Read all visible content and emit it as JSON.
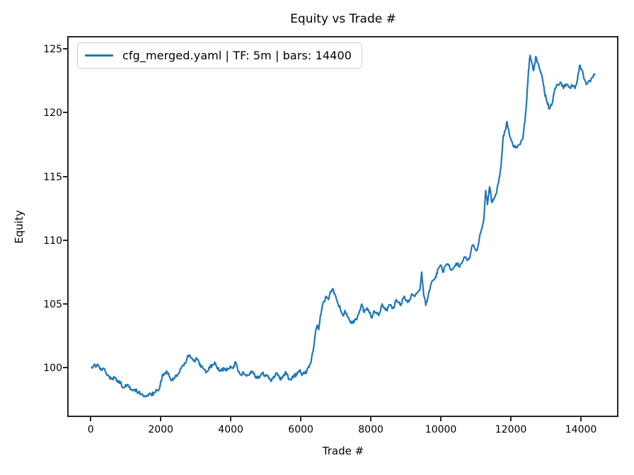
{
  "chart_data": {
    "type": "line",
    "title": "Equity vs Trade #",
    "xlabel": "Trade #",
    "ylabel": "Equity",
    "legend": [
      "cfg_merged.yaml | TF: 5m | bars: 14400"
    ],
    "legend_position": "upper left",
    "line_color": "#1f77b4",
    "grid": false,
    "xlim": [
      -650,
      15050
    ],
    "ylim": [
      96.2,
      125.9
    ],
    "x_ticks": [
      0,
      2000,
      4000,
      6000,
      8000,
      10000,
      12000,
      14000
    ],
    "y_ticks": [
      100,
      105,
      110,
      115,
      120,
      125
    ],
    "noise_amplitude": 0.15,
    "series": [
      {
        "name": "cfg_merged.yaml | TF: 5m | bars: 14400",
        "points": [
          [
            30,
            100.05
          ],
          [
            70,
            100.1
          ],
          [
            110,
            100.3
          ],
          [
            160,
            100.1
          ],
          [
            210,
            100.2
          ],
          [
            260,
            99.9
          ],
          [
            320,
            99.8
          ],
          [
            380,
            99.95
          ],
          [
            440,
            99.6
          ],
          [
            510,
            99.4
          ],
          [
            600,
            99.15
          ],
          [
            680,
            99.25
          ],
          [
            760,
            99.0
          ],
          [
            850,
            98.8
          ],
          [
            940,
            98.45
          ],
          [
            1030,
            98.6
          ],
          [
            1100,
            98.5
          ],
          [
            1170,
            98.3
          ],
          [
            1260,
            98.3
          ],
          [
            1360,
            98.1
          ],
          [
            1450,
            97.95
          ],
          [
            1540,
            97.8
          ],
          [
            1610,
            97.85
          ],
          [
            1670,
            98.0
          ],
          [
            1730,
            97.85
          ],
          [
            1800,
            98.05
          ],
          [
            1870,
            98.3
          ],
          [
            1930,
            98.2
          ],
          [
            1990,
            98.75
          ],
          [
            2060,
            99.5
          ],
          [
            2120,
            99.6
          ],
          [
            2170,
            99.75
          ],
          [
            2240,
            99.35
          ],
          [
            2320,
            99.0
          ],
          [
            2400,
            99.2
          ],
          [
            2480,
            99.45
          ],
          [
            2560,
            99.9
          ],
          [
            2640,
            100.2
          ],
          [
            2700,
            100.35
          ],
          [
            2760,
            100.85
          ],
          [
            2830,
            101.0
          ],
          [
            2900,
            100.7
          ],
          [
            2960,
            100.5
          ],
          [
            3020,
            100.8
          ],
          [
            3090,
            100.45
          ],
          [
            3160,
            100.1
          ],
          [
            3230,
            99.9
          ],
          [
            3310,
            99.7
          ],
          [
            3400,
            100.0
          ],
          [
            3470,
            100.2
          ],
          [
            3540,
            100.45
          ],
          [
            3610,
            100.0
          ],
          [
            3680,
            99.75
          ],
          [
            3750,
            99.85
          ],
          [
            3830,
            99.95
          ],
          [
            3910,
            99.85
          ],
          [
            3990,
            100.15
          ],
          [
            4060,
            99.95
          ],
          [
            4140,
            100.45
          ],
          [
            4220,
            99.7
          ],
          [
            4290,
            99.45
          ],
          [
            4370,
            99.6
          ],
          [
            4450,
            99.35
          ],
          [
            4540,
            99.5
          ],
          [
            4630,
            99.7
          ],
          [
            4720,
            99.3
          ],
          [
            4810,
            99.2
          ],
          [
            4900,
            99.55
          ],
          [
            5000,
            99.45
          ],
          [
            5080,
            99.2
          ],
          [
            5160,
            98.95
          ],
          [
            5240,
            99.25
          ],
          [
            5320,
            99.6
          ],
          [
            5400,
            99.15
          ],
          [
            5490,
            99.35
          ],
          [
            5570,
            99.7
          ],
          [
            5650,
            99.1
          ],
          [
            5730,
            99.05
          ],
          [
            5810,
            99.4
          ],
          [
            5890,
            99.45
          ],
          [
            5960,
            99.8
          ],
          [
            6030,
            99.4
          ],
          [
            6100,
            99.55
          ],
          [
            6170,
            99.75
          ],
          [
            6240,
            100.05
          ],
          [
            6290,
            100.4
          ],
          [
            6350,
            101.3
          ],
          [
            6410,
            102.6
          ],
          [
            6460,
            103.3
          ],
          [
            6510,
            103.0
          ],
          [
            6560,
            104.1
          ],
          [
            6610,
            104.8
          ],
          [
            6670,
            105.2
          ],
          [
            6730,
            105.6
          ],
          [
            6790,
            105.35
          ],
          [
            6860,
            106.0
          ],
          [
            6910,
            106.2
          ],
          [
            6970,
            105.8
          ],
          [
            7050,
            105.1
          ],
          [
            7130,
            104.6
          ],
          [
            7200,
            104.1
          ],
          [
            7260,
            104.5
          ],
          [
            7330,
            104.0
          ],
          [
            7400,
            103.7
          ],
          [
            7470,
            103.5
          ],
          [
            7540,
            103.75
          ],
          [
            7610,
            103.9
          ],
          [
            7680,
            104.5
          ],
          [
            7740,
            105.0
          ],
          [
            7810,
            104.35
          ],
          [
            7890,
            104.7
          ],
          [
            7960,
            104.3
          ],
          [
            8030,
            103.9
          ],
          [
            8100,
            104.45
          ],
          [
            8170,
            104.25
          ],
          [
            8240,
            104.2
          ],
          [
            8310,
            104.9
          ],
          [
            8380,
            104.75
          ],
          [
            8450,
            104.5
          ],
          [
            8520,
            104.95
          ],
          [
            8590,
            104.8
          ],
          [
            8660,
            104.7
          ],
          [
            8730,
            105.35
          ],
          [
            8800,
            105.1
          ],
          [
            8870,
            105.0
          ],
          [
            8940,
            105.55
          ],
          [
            9010,
            105.3
          ],
          [
            9090,
            105.2
          ],
          [
            9170,
            105.8
          ],
          [
            9250,
            105.6
          ],
          [
            9330,
            105.9
          ],
          [
            9400,
            106.1
          ],
          [
            9450,
            107.5
          ],
          [
            9510,
            105.7
          ],
          [
            9570,
            104.9
          ],
          [
            9640,
            105.7
          ],
          [
            9710,
            106.5
          ],
          [
            9790,
            106.9
          ],
          [
            9860,
            107.1
          ],
          [
            9930,
            107.8
          ],
          [
            9990,
            108.05
          ],
          [
            10060,
            107.5
          ],
          [
            10130,
            108.0
          ],
          [
            10190,
            108.15
          ],
          [
            10260,
            107.8
          ],
          [
            10330,
            107.7
          ],
          [
            10400,
            108.0
          ],
          [
            10470,
            108.2
          ],
          [
            10540,
            107.9
          ],
          [
            10610,
            108.3
          ],
          [
            10670,
            108.7
          ],
          [
            10740,
            108.45
          ],
          [
            10810,
            108.55
          ],
          [
            10900,
            109.6
          ],
          [
            10960,
            109.4
          ],
          [
            11030,
            109.2
          ],
          [
            11100,
            110.2
          ],
          [
            11170,
            110.9
          ],
          [
            11230,
            111.7
          ],
          [
            11280,
            113.9
          ],
          [
            11330,
            112.8
          ],
          [
            11390,
            114.2
          ],
          [
            11450,
            113.0
          ],
          [
            11520,
            113.3
          ],
          [
            11590,
            113.7
          ],
          [
            11660,
            114.8
          ],
          [
            11720,
            115.9
          ],
          [
            11780,
            118.2
          ],
          [
            11840,
            118.6
          ],
          [
            11890,
            119.3
          ],
          [
            11950,
            118.4
          ],
          [
            12010,
            117.8
          ],
          [
            12090,
            117.3
          ],
          [
            12170,
            117.25
          ],
          [
            12250,
            117.5
          ],
          [
            12330,
            117.9
          ],
          [
            12400,
            119.3
          ],
          [
            12450,
            120.9
          ],
          [
            12500,
            123.2
          ],
          [
            12550,
            124.5
          ],
          [
            12600,
            123.9
          ],
          [
            12650,
            123.3
          ],
          [
            12710,
            124.4
          ],
          [
            12770,
            123.9
          ],
          [
            12830,
            123.4
          ],
          [
            12890,
            122.85
          ],
          [
            12960,
            121.6
          ],
          [
            13030,
            120.9
          ],
          [
            13100,
            120.3
          ],
          [
            13180,
            120.75
          ],
          [
            13260,
            121.9
          ],
          [
            13330,
            122.2
          ],
          [
            13420,
            122.4
          ],
          [
            13500,
            121.9
          ],
          [
            13580,
            122.25
          ],
          [
            13660,
            122.0
          ],
          [
            13750,
            122.1
          ],
          [
            13830,
            121.9
          ],
          [
            13900,
            122.6
          ],
          [
            13960,
            123.7
          ],
          [
            14030,
            123.35
          ],
          [
            14100,
            122.6
          ],
          [
            14170,
            122.25
          ],
          [
            14250,
            122.5
          ],
          [
            14330,
            122.8
          ],
          [
            14400,
            123.0
          ]
        ]
      }
    ]
  }
}
